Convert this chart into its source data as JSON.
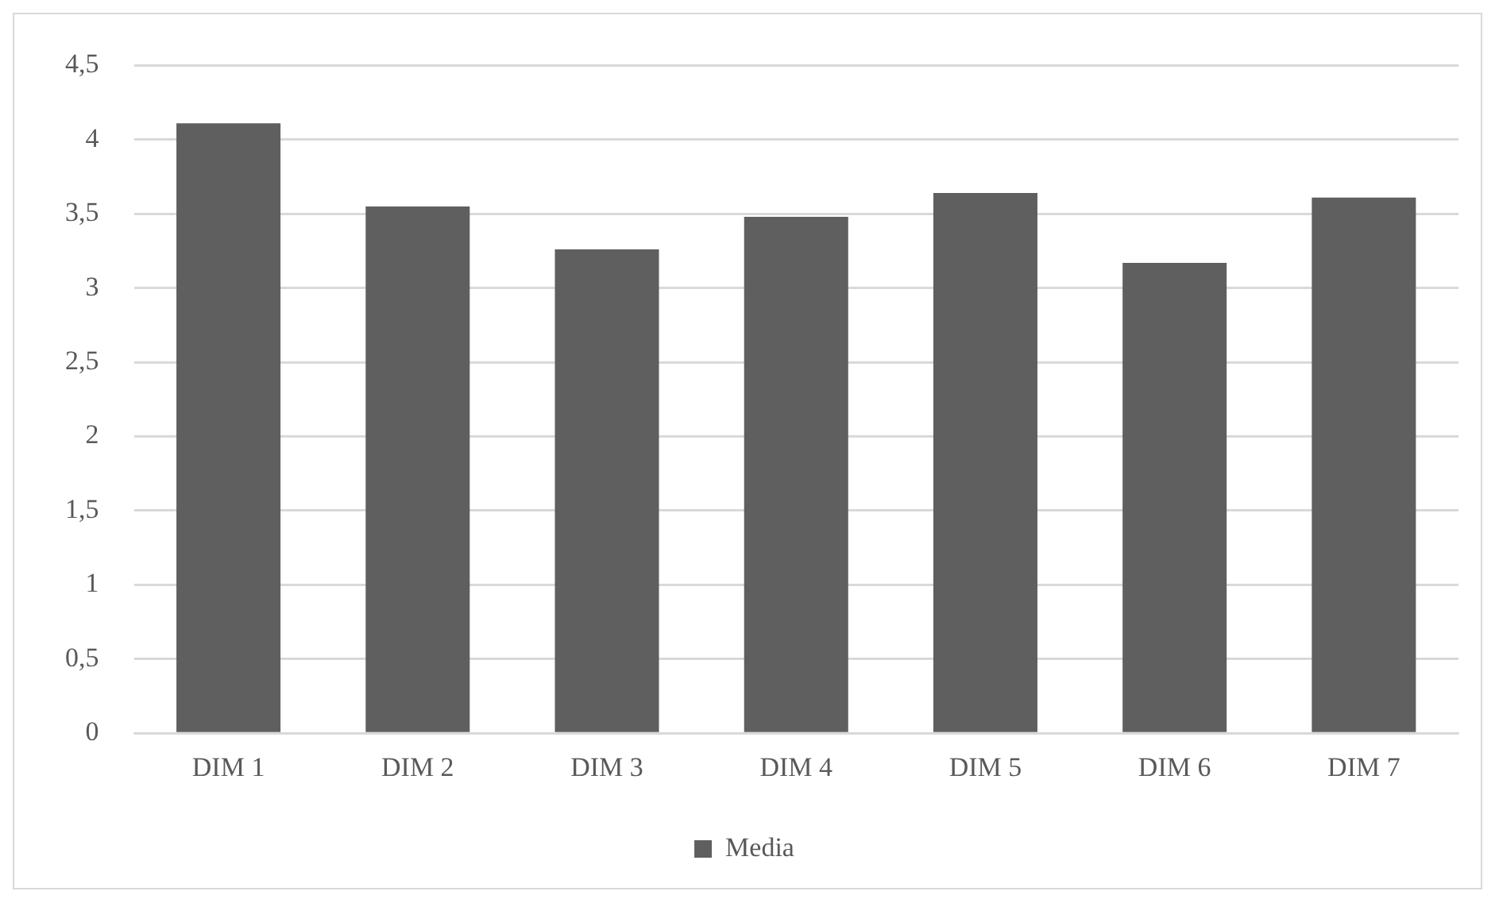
{
  "chart_data": {
    "type": "bar",
    "categories": [
      "DIM 1",
      "DIM 2",
      "DIM 3",
      "DIM 4",
      "DIM 5",
      "DIM 6",
      "DIM 7"
    ],
    "series": [
      {
        "name": "Media",
        "color": "#5f5f5f",
        "values": [
          4.11,
          3.55,
          3.26,
          3.48,
          3.64,
          3.17,
          3.61
        ]
      }
    ],
    "ylim": [
      0,
      4.5
    ],
    "yticks": [
      0,
      {
        "value": 0.5,
        "label": "0,5"
      },
      1,
      {
        "value": 1.5,
        "label": "1,5"
      },
      2,
      {
        "value": 2.5,
        "label": "2,5"
      },
      3,
      {
        "value": 3.5,
        "label": "3,5"
      },
      4,
      {
        "value": 4.5,
        "label": "4,5"
      }
    ],
    "grid": "y",
    "legend": "bottom"
  }
}
